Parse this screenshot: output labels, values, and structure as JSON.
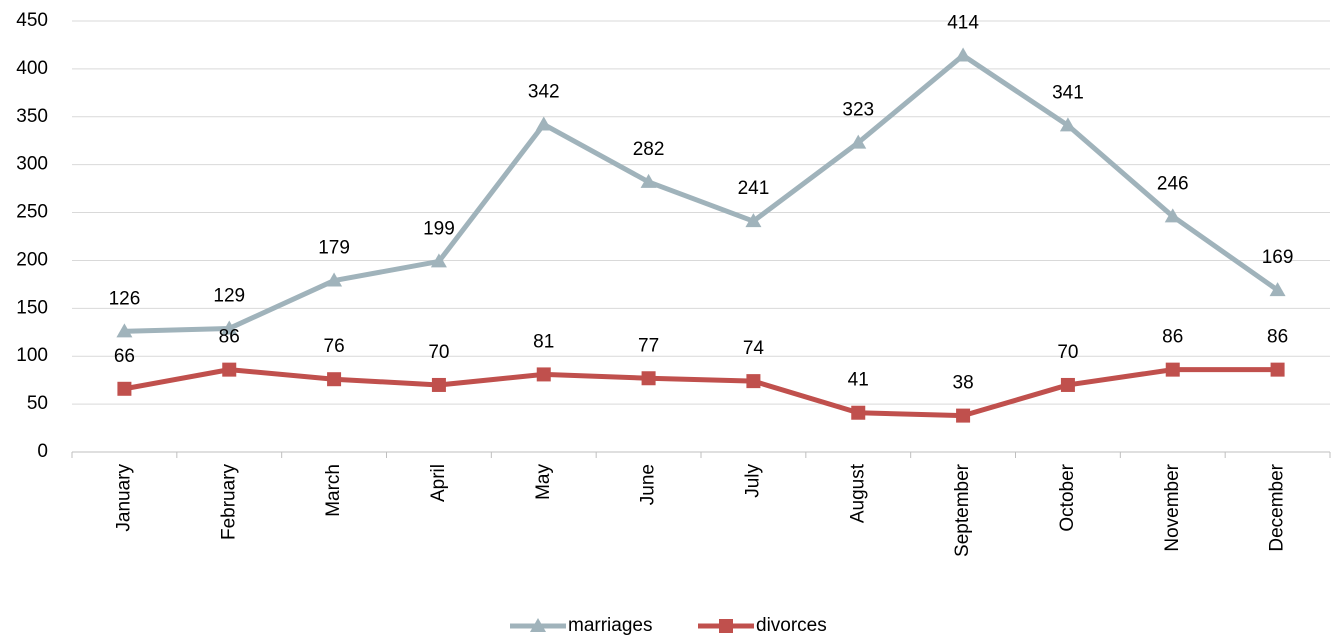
{
  "chart_data": {
    "type": "line",
    "categories": [
      "January",
      "February",
      "March",
      "April",
      "May",
      "June",
      "July",
      "August",
      "September",
      "October",
      "November",
      "December"
    ],
    "series": [
      {
        "name": "marriages",
        "color": "#a0b3bb",
        "marker": "triangle",
        "values": [
          126,
          129,
          179,
          199,
          342,
          282,
          241,
          323,
          414,
          341,
          246,
          169
        ]
      },
      {
        "name": "divorces",
        "color": "#c0504d",
        "marker": "square",
        "values": [
          66,
          86,
          76,
          70,
          81,
          77,
          74,
          41,
          38,
          70,
          86,
          86
        ]
      }
    ],
    "ylim": [
      0,
      450
    ],
    "yticks": [
      0,
      50,
      100,
      150,
      200,
      250,
      300,
      350,
      400,
      450
    ],
    "grid": true,
    "legend": "bottom"
  }
}
